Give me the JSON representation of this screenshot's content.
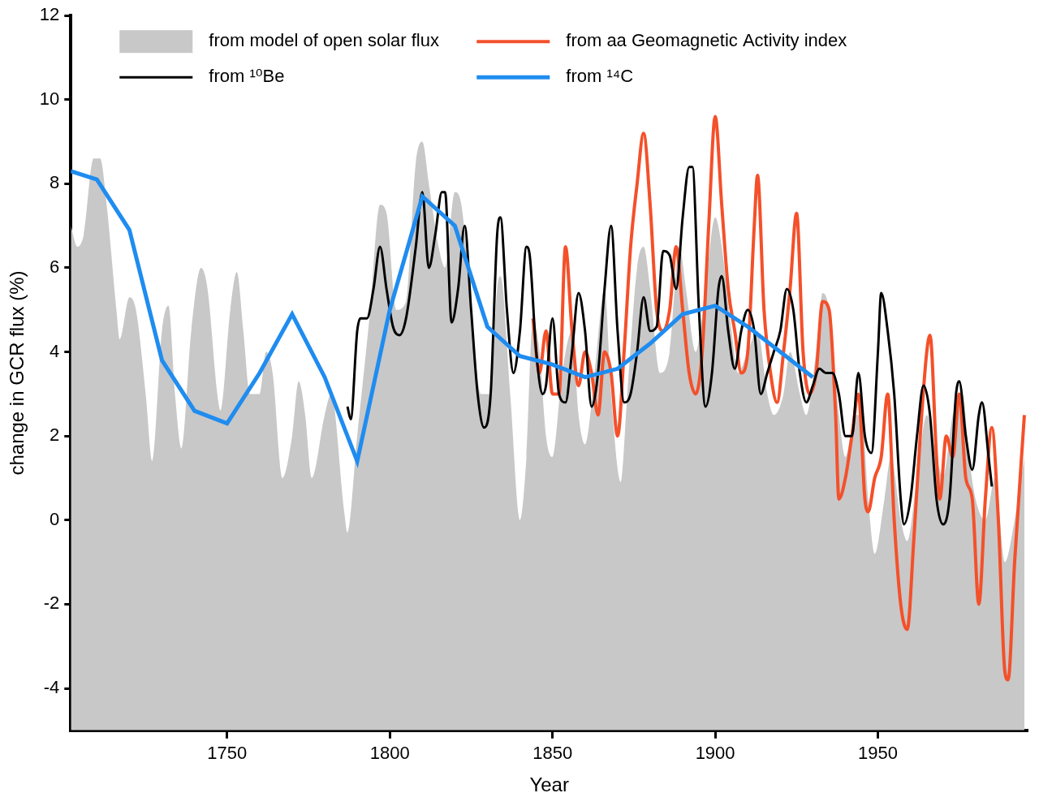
{
  "chart_data": {
    "type": "line",
    "x_label": "Year",
    "y_label": "change in GCR flux (%)",
    "xlim": [
      1702,
      1996
    ],
    "xticks": [
      1750,
      1800,
      1850,
      1900,
      1950
    ],
    "ylim": [
      -5,
      12
    ],
    "yticks": [
      -4,
      -2,
      0,
      2,
      4,
      6,
      8,
      10,
      12
    ],
    "grid": false,
    "legend": "upper left",
    "series": [
      {
        "name": "from model of open solar flux",
        "type": "area",
        "color": "#c8c8c8",
        "x": [
          1702,
          1704,
          1706,
          1709,
          1711,
          1713,
          1716,
          1717,
          1720,
          1722,
          1725,
          1727,
          1730,
          1732,
          1734,
          1736,
          1739,
          1742,
          1744,
          1747,
          1748,
          1751,
          1753,
          1755,
          1757,
          1760,
          1762,
          1764,
          1767,
          1770,
          1772,
          1774,
          1776,
          1780,
          1782,
          1786,
          1787,
          1790,
          1794,
          1797,
          1799,
          1802,
          1805,
          1808,
          1810,
          1812,
          1815,
          1817,
          1820,
          1822,
          1825,
          1828,
          1831,
          1833,
          1834,
          1837,
          1840,
          1842,
          1844,
          1846,
          1848,
          1850,
          1853,
          1856,
          1858,
          1860,
          1863,
          1866,
          1868,
          1871,
          1873,
          1876,
          1878,
          1880,
          1883,
          1886,
          1889,
          1891,
          1894,
          1897,
          1900,
          1902,
          1905,
          1907,
          1910,
          1913,
          1916,
          1918,
          1921,
          1923,
          1926,
          1928,
          1931,
          1933,
          1935,
          1938,
          1940,
          1943,
          1945,
          1947,
          1949,
          1952,
          1954,
          1957,
          1959,
          1962,
          1965,
          1968,
          1970,
          1973,
          1976,
          1978,
          1980,
          1983,
          1986,
          1989,
          1992,
          1995
        ],
        "values": [
          7.0,
          6.5,
          6.8,
          8.6,
          8.6,
          7.5,
          5.0,
          4.3,
          5.3,
          5.0,
          3.0,
          1.4,
          4.5,
          5.1,
          3.0,
          1.7,
          4.5,
          6.0,
          5.5,
          3.0,
          2.6,
          5.0,
          5.9,
          4.5,
          3.0,
          3.0,
          4.0,
          3.5,
          1.0,
          2.0,
          3.3,
          2.5,
          1.0,
          2.5,
          3.0,
          0.2,
          -0.3,
          2.0,
          5.0,
          7.5,
          7.3,
          5.0,
          5.2,
          8.5,
          9.0,
          8.0,
          6.5,
          6.0,
          7.8,
          7.5,
          5.0,
          3.0,
          3.0,
          5.5,
          5.8,
          3.0,
          0.0,
          1.5,
          4.8,
          4.0,
          2.0,
          1.5,
          3.5,
          4.5,
          2.5,
          1.8,
          3.5,
          5.5,
          3.0,
          0.9,
          3.0,
          6.0,
          6.5,
          5.5,
          3.5,
          4.0,
          6.5,
          5.5,
          4.0,
          5.5,
          7.2,
          6.5,
          4.5,
          3.5,
          4.0,
          4.5,
          3.0,
          2.5,
          3.0,
          4.0,
          3.0,
          2.5,
          4.0,
          5.4,
          5.0,
          2.5,
          1.5,
          2.5,
          2.5,
          0.5,
          -0.8,
          0.5,
          1.5,
          0.0,
          -0.5,
          1.0,
          2.5,
          1.5,
          1.0,
          2.5,
          3.0,
          1.5,
          0.5,
          0.0,
          1.0,
          -1.0,
          0.0,
          1.5
        ]
      },
      {
        "name": "from aa Geomagnetic Activity index",
        "type": "line",
        "color": "#f4502a",
        "x": [
          1844,
          1846,
          1848,
          1850,
          1852,
          1854,
          1856,
          1858,
          1860,
          1862,
          1864,
          1866,
          1868,
          1870,
          1872,
          1874,
          1876,
          1878,
          1880,
          1882,
          1884,
          1886,
          1888,
          1890,
          1892,
          1894,
          1896,
          1898,
          1900,
          1902,
          1904,
          1906,
          1908,
          1910,
          1912,
          1913,
          1915,
          1917,
          1919,
          1921,
          1923,
          1925,
          1927,
          1929,
          1931,
          1933,
          1935,
          1937,
          1938,
          1940,
          1942,
          1944,
          1946,
          1947,
          1949,
          1951,
          1953,
          1955,
          1957,
          1959,
          1961,
          1963,
          1965,
          1966,
          1968,
          1969,
          1971,
          1973,
          1975,
          1977,
          1979,
          1981,
          1983,
          1985,
          1987,
          1989,
          1990,
          1992,
          1995
        ],
        "values": [
          4.8,
          3.5,
          4.5,
          3.0,
          3.0,
          6.5,
          4.5,
          3.2,
          4.0,
          3.5,
          2.5,
          4.0,
          3.5,
          2.0,
          4.0,
          6.5,
          8.0,
          9.2,
          7.5,
          5.0,
          4.5,
          5.0,
          6.5,
          5.0,
          3.5,
          3.0,
          4.0,
          7.0,
          9.6,
          7.5,
          5.5,
          4.5,
          3.5,
          4.0,
          7.0,
          8.2,
          5.0,
          3.5,
          2.8,
          4.0,
          5.5,
          7.3,
          4.0,
          3.0,
          3.5,
          5.2,
          5.0,
          2.5,
          0.5,
          1.0,
          2.0,
          3.0,
          0.5,
          0.2,
          1.0,
          1.5,
          3.0,
          0.0,
          -2.0,
          -2.6,
          -0.5,
          2.0,
          4.0,
          4.4,
          1.5,
          0.5,
          2.0,
          1.5,
          3.0,
          1.0,
          0.5,
          -2.0,
          0.5,
          2.2,
          0.0,
          -3.6,
          -3.8,
          -1.0,
          2.5
        ]
      },
      {
        "name": "from ¹⁰Be",
        "type": "line",
        "color": "#000000",
        "x": [
          1787,
          1788,
          1790,
          1791,
          1793,
          1795,
          1797,
          1799,
          1801,
          1803,
          1805,
          1808,
          1810,
          1812,
          1814,
          1816,
          1817,
          1819,
          1821,
          1823,
          1825,
          1827,
          1829,
          1831,
          1833,
          1834,
          1836,
          1838,
          1840,
          1842,
          1843,
          1845,
          1847,
          1848,
          1850,
          1852,
          1854,
          1856,
          1858,
          1860,
          1862,
          1864,
          1866,
          1868,
          1870,
          1872,
          1874,
          1876,
          1878,
          1880,
          1882,
          1884,
          1886,
          1888,
          1890,
          1892,
          1893,
          1895,
          1897,
          1899,
          1901,
          1902,
          1904,
          1906,
          1908,
          1910,
          1912,
          1914,
          1916,
          1918,
          1920,
          1922,
          1924,
          1926,
          1928,
          1930,
          1932,
          1934,
          1936,
          1938,
          1940,
          1942,
          1944,
          1946,
          1948,
          1950,
          1951,
          1953,
          1955,
          1957,
          1958,
          1960,
          1962,
          1964,
          1966,
          1968,
          1970,
          1972,
          1974,
          1975,
          1977,
          1979,
          1981,
          1982,
          1984,
          1985
        ],
        "values": [
          2.7,
          2.4,
          4.5,
          4.8,
          4.8,
          5.5,
          6.5,
          5.5,
          4.6,
          4.4,
          4.8,
          6.5,
          7.8,
          6.0,
          6.8,
          7.8,
          7.8,
          4.7,
          5.5,
          7.0,
          5.0,
          3.0,
          2.2,
          3.0,
          6.8,
          7.2,
          5.0,
          3.5,
          4.5,
          6.5,
          6.3,
          4.0,
          3.0,
          3.2,
          4.8,
          3.0,
          2.8,
          4.0,
          5.4,
          4.5,
          2.7,
          3.5,
          5.5,
          7.0,
          4.5,
          2.8,
          3.0,
          4.0,
          5.3,
          4.5,
          4.6,
          6.4,
          6.3,
          5.5,
          7.2,
          8.4,
          8.4,
          5.0,
          2.7,
          3.5,
          5.5,
          5.8,
          4.5,
          3.6,
          4.5,
          5.0,
          4.5,
          3.0,
          3.5,
          4.0,
          4.5,
          5.5,
          5.0,
          3.5,
          2.8,
          3.2,
          3.6,
          3.5,
          3.5,
          3.0,
          2.0,
          2.0,
          3.5,
          2.0,
          1.6,
          4.0,
          5.4,
          4.5,
          3.0,
          0.5,
          -0.1,
          0.5,
          2.0,
          3.2,
          2.5,
          0.5,
          -0.1,
          0.5,
          3.0,
          3.3,
          2.0,
          1.2,
          2.5,
          2.8,
          1.5,
          0.8
        ]
      },
      {
        "name": "from ¹⁴C",
        "type": "line",
        "color": "#1f8cf0",
        "x": [
          1702,
          1710,
          1720,
          1730,
          1740,
          1750,
          1760,
          1770,
          1780,
          1790,
          1800,
          1810,
          1820,
          1830,
          1840,
          1850,
          1860,
          1870,
          1880,
          1890,
          1900,
          1910,
          1920,
          1930
        ],
        "values": [
          8.3,
          8.1,
          6.9,
          3.8,
          2.6,
          2.3,
          3.5,
          4.9,
          3.4,
          1.4,
          5.0,
          7.7,
          7.0,
          4.6,
          3.9,
          3.7,
          3.4,
          3.6,
          4.2,
          4.9,
          5.1,
          4.6,
          4.0,
          3.4
        ]
      }
    ]
  }
}
